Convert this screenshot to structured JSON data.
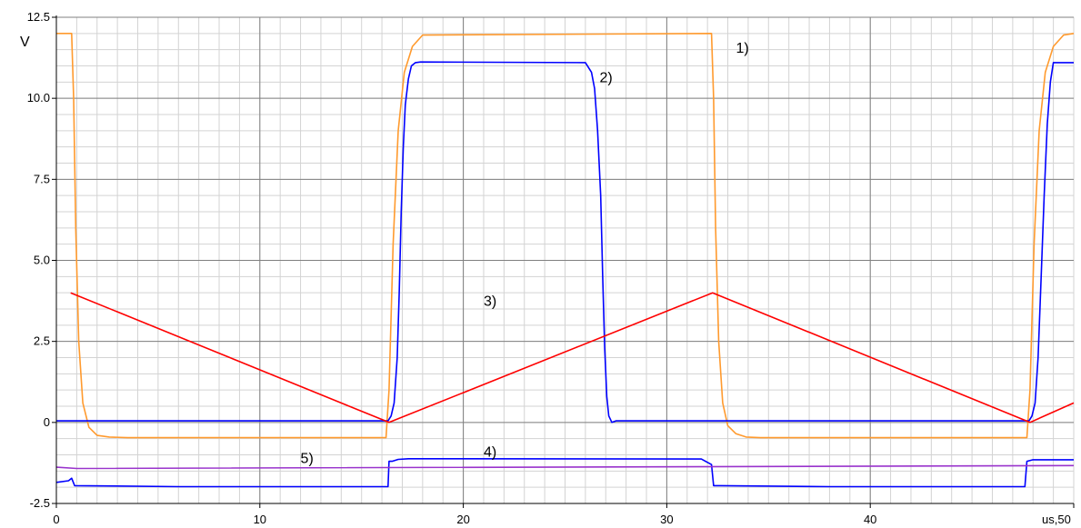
{
  "chart_data": {
    "type": "line",
    "title": "",
    "xlabel": "",
    "ylabel": "",
    "y_unit": "V",
    "x_unit": "us,50",
    "xlim": [
      0,
      50
    ],
    "ylim": [
      -2.5,
      12.5
    ],
    "x_ticks": [
      0,
      10,
      20,
      30,
      40
    ],
    "x_tick_labels": [
      "0",
      "10",
      "20",
      "30",
      "40"
    ],
    "y_ticks": [
      -2.5,
      0,
      2.5,
      5.0,
      7.5,
      10.0,
      12.5
    ],
    "y_tick_labels": [
      "-2.5",
      "0",
      "2.5",
      "5.0",
      "7.5",
      "10.0",
      "12.5"
    ],
    "grid": true,
    "background": "#ffffff",
    "major_grid_color": "#808080",
    "minor_grid_color": "#d3d3d3",
    "series": [
      {
        "label": "1)",
        "label_at": [
          33.4,
          11.4
        ],
        "color": "#ff9a2e",
        "x": [
          0,
          0.75,
          0.85,
          0.95,
          1.1,
          1.3,
          1.6,
          2.0,
          2.6,
          3.5,
          16.2,
          16.35,
          16.55,
          16.8,
          17.1,
          17.5,
          18.0,
          32.2,
          32.3,
          32.4,
          32.55,
          32.75,
          33.0,
          33.4,
          33.9,
          34.6,
          47.7,
          47.85,
          48.05,
          48.3,
          48.6,
          49.0,
          49.5,
          50
        ],
        "y": [
          12.0,
          12.0,
          10.0,
          6.0,
          2.5,
          0.6,
          -0.15,
          -0.4,
          -0.45,
          -0.47,
          -0.47,
          1.0,
          5.5,
          9.0,
          10.8,
          11.6,
          11.95,
          12.0,
          10.0,
          6.0,
          2.5,
          0.6,
          -0.1,
          -0.35,
          -0.45,
          -0.47,
          -0.47,
          1.0,
          5.5,
          9.0,
          10.8,
          11.6,
          11.95,
          12.0
        ]
      },
      {
        "label": "2)",
        "label_at": [
          26.7,
          10.5
        ],
        "color": "#0000ff",
        "x": [
          0,
          16.3,
          16.45,
          16.6,
          16.75,
          16.85,
          16.95,
          17.05,
          17.15,
          17.3,
          17.45,
          17.65,
          17.9,
          26.0,
          26.3,
          26.45,
          26.6,
          26.75,
          26.85,
          26.95,
          27.05,
          27.15,
          27.3,
          27.5,
          47.8,
          47.95,
          48.1,
          48.25,
          48.4,
          48.55,
          48.7,
          48.85,
          49.0,
          50
        ],
        "y": [
          0.05,
          0.05,
          0.2,
          0.6,
          2.0,
          4.0,
          6.5,
          8.5,
          9.8,
          10.6,
          11.0,
          11.1,
          11.12,
          11.1,
          10.8,
          10.3,
          9.0,
          7.0,
          4.5,
          2.3,
          0.8,
          0.2,
          0.0,
          0.05,
          0.05,
          0.2,
          0.6,
          2.0,
          4.5,
          7.0,
          9.2,
          10.5,
          11.1,
          11.1
        ]
      },
      {
        "label": "3)",
        "label_at": [
          21.0,
          3.6
        ],
        "color": "#ff0000",
        "x": [
          0.7,
          16.35,
          32.25,
          47.85,
          50
        ],
        "y": [
          4.0,
          0.0,
          4.0,
          0.0,
          0.6
        ]
      },
      {
        "label": "4)",
        "label_at": [
          21.0,
          -1.05
        ],
        "color": "#0000ff",
        "x": [
          0,
          0.6,
          0.75,
          0.9,
          6.0,
          16.3,
          16.35,
          16.5,
          16.8,
          17.3,
          31.7,
          32.2,
          32.3,
          32.6,
          38.0,
          47.6,
          47.7,
          48.0,
          50
        ],
        "y": [
          -1.85,
          -1.8,
          -1.72,
          -1.95,
          -1.98,
          -1.98,
          -1.2,
          -1.2,
          -1.14,
          -1.12,
          -1.13,
          -1.3,
          -1.95,
          -1.95,
          -1.98,
          -1.98,
          -1.2,
          -1.15,
          -1.15
        ]
      },
      {
        "label": "5)",
        "label_at": [
          12.0,
          -1.25
        ],
        "color": "#9933cc",
        "x": [
          0,
          1.0,
          50
        ],
        "y": [
          -1.38,
          -1.42,
          -1.33
        ]
      }
    ]
  }
}
